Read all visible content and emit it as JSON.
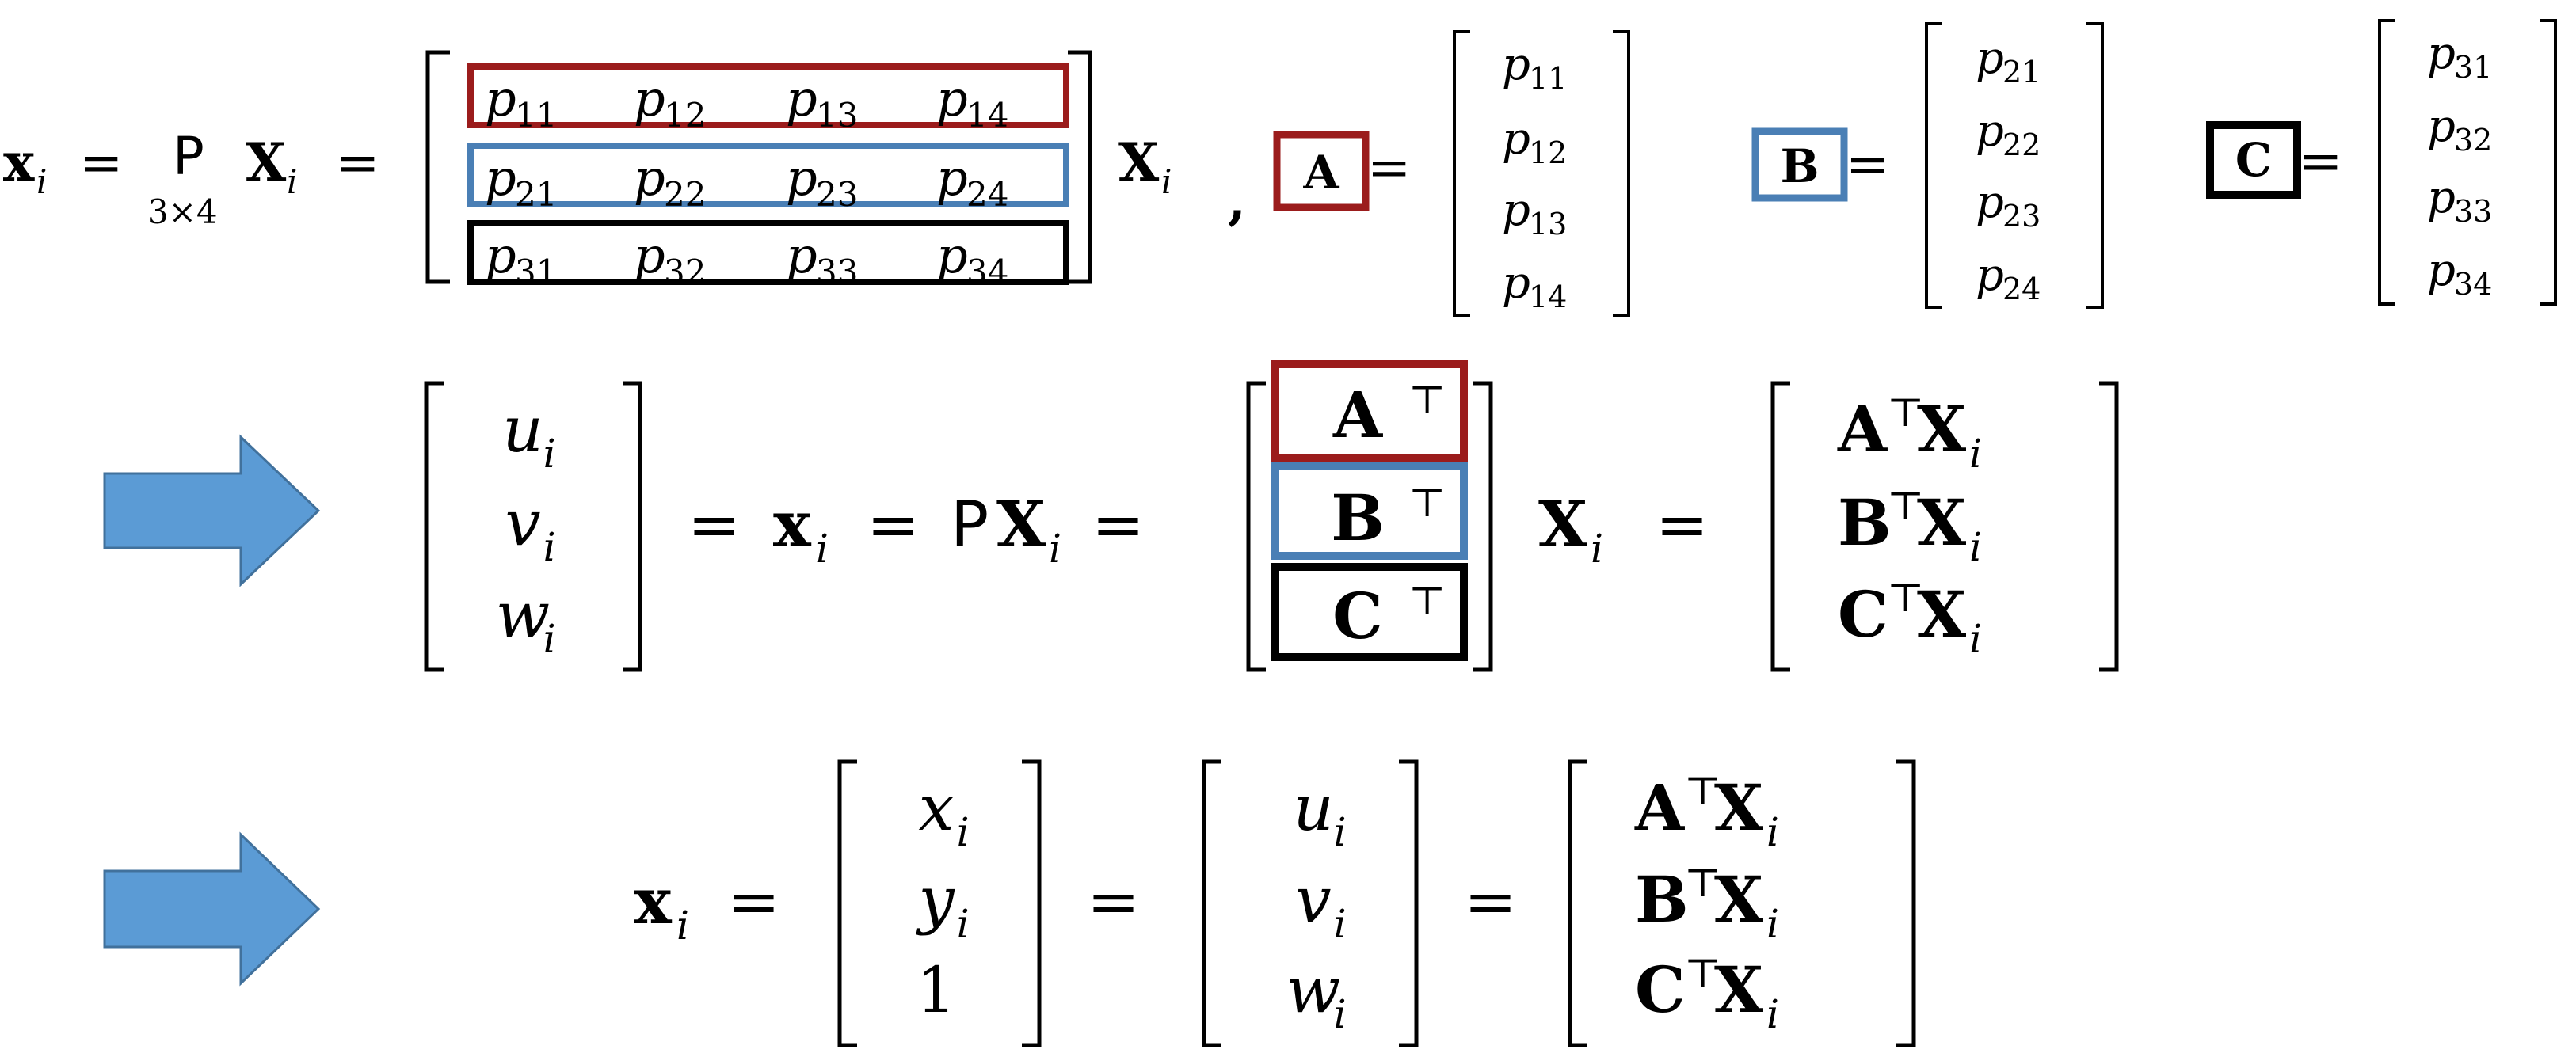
{
  "colors": {
    "red_box": "#9b1c1c",
    "blue_box": "#4a7fb5",
    "black_box": "#000000",
    "arrow_fill": "#5b9bd5",
    "arrow_stroke": "#41719c"
  },
  "row1": {
    "lhs_x": "x",
    "lhs_sub": "i",
    "equals": "=",
    "P": "P",
    "P_sub": "3×4",
    "X": "X",
    "X_sub": "i",
    "matrix_rows": [
      [
        "p",
        "11",
        "p",
        "12",
        "p",
        "13",
        "p",
        "14"
      ],
      [
        "p",
        "21",
        "p",
        "22",
        "p",
        "23",
        "p",
        "24"
      ],
      [
        "p",
        "31",
        "p",
        "32",
        "p",
        "33",
        "p",
        "34"
      ]
    ],
    "comma": ",",
    "labels": {
      "A": "A",
      "B": "B",
      "C": "C"
    },
    "vectors": {
      "A": [
        [
          "p",
          "11"
        ],
        [
          "p",
          "12"
        ],
        [
          "p",
          "13"
        ],
        [
          "p",
          "14"
        ]
      ],
      "B": [
        [
          "p",
          "21"
        ],
        [
          "p",
          "22"
        ],
        [
          "p",
          "23"
        ],
        [
          "p",
          "24"
        ]
      ],
      "C": [
        [
          "p",
          "31"
        ],
        [
          "p",
          "32"
        ],
        [
          "p",
          "33"
        ],
        [
          "p",
          "34"
        ]
      ]
    }
  },
  "row2": {
    "arrow_icon": "right-arrow-icon",
    "uvw": [
      [
        "u",
        "i"
      ],
      [
        "v",
        "i"
      ],
      [
        "w",
        "i"
      ]
    ],
    "x": "x",
    "x_sub": "i",
    "P": "P",
    "X": "X",
    "X_sub": "i",
    "stack": [
      [
        "A",
        "⊤"
      ],
      [
        "B",
        "⊤"
      ],
      [
        "C",
        "⊤"
      ]
    ],
    "result": [
      [
        "A",
        "⊤",
        "X",
        "i"
      ],
      [
        "B",
        "⊤",
        "X",
        "i"
      ],
      [
        "C",
        "⊤",
        "X",
        "i"
      ]
    ],
    "equals": "="
  },
  "row3": {
    "arrow_icon": "right-arrow-icon",
    "x": "x",
    "x_sub": "i",
    "xy1": [
      [
        "x",
        "i"
      ],
      [
        "y",
        "i"
      ],
      [
        "1",
        ""
      ]
    ],
    "uvw": [
      [
        "u",
        "i"
      ],
      [
        "v",
        "i"
      ],
      [
        "w",
        "i"
      ]
    ],
    "result": [
      [
        "A",
        "⊤",
        "X",
        "i"
      ],
      [
        "B",
        "⊤",
        "X",
        "i"
      ],
      [
        "C",
        "⊤",
        "X",
        "i"
      ]
    ],
    "equals": "="
  }
}
